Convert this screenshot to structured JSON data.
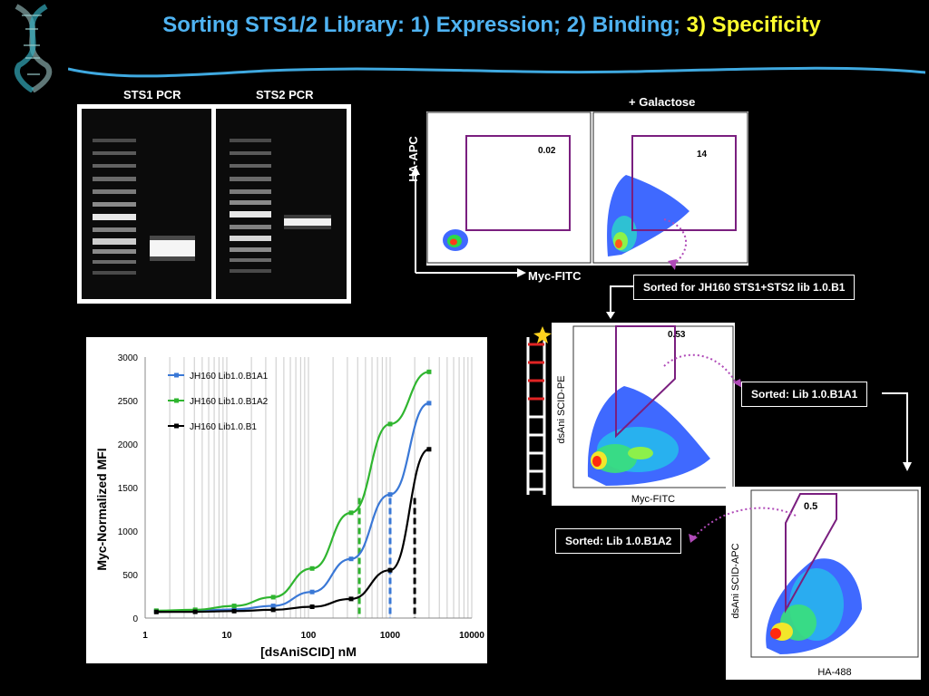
{
  "slide": {
    "title_main": "Sorting STS1/2 Library: 1) Expression; 2) Binding; ",
    "title_highlight": "3) Specificity",
    "gel": {
      "label_sts1": "STS1 PCR",
      "label_sts2": "STS2 PCR"
    },
    "facs_top": {
      "header": "+ Galactose",
      "y_axis": "HA-APC",
      "x_axis": "Myc-FITC",
      "gate_left": "0.02",
      "gate_right": "14",
      "sorted_label": "Sorted for JH160 STS1+STS2  lib 1.0.B1"
    },
    "facs_mid": {
      "y_axis": "dsAni SCID-PE",
      "x_axis": "Myc-FITC",
      "gate": "0.53",
      "sorted_label": "Sorted: Lib 1.0.B1A1"
    },
    "facs_bottom": {
      "y_axis": "dsAni SCID-APC",
      "x_axis": "HA-488",
      "gate": "0.5",
      "sorted_label": "Sorted: Lib 1.0.B1A2"
    }
  },
  "chart_data": {
    "type": "line",
    "xscale": "log",
    "xlabel": "[dsAniSCID] nM",
    "ylabel": "Myc-Normalized MFI",
    "xlim": [
      1,
      10000
    ],
    "ylim": [
      0,
      3000
    ],
    "x_ticks": [
      "1",
      "10",
      "100",
      "1000",
      "10000"
    ],
    "y_ticks": [
      "0",
      "500",
      "1000",
      "1500",
      "2000",
      "2500",
      "3000"
    ],
    "legend_position": "top-left",
    "grid": "log-vertical",
    "series": [
      {
        "name": "JH160 Lib1.0.B1A1",
        "color": "#3a78d6",
        "x": [
          1.37,
          4.1,
          12.3,
          37,
          111,
          333,
          1000,
          3000
        ],
        "y": [
          80,
          85,
          100,
          140,
          300,
          680,
          1420,
          2470
        ]
      },
      {
        "name": "JH160 Lib1.0.B1A2",
        "color": "#2fb52f",
        "x": [
          1.37,
          4.1,
          12.3,
          37,
          111,
          333,
          1000,
          3000
        ],
        "y": [
          85,
          95,
          140,
          240,
          570,
          1210,
          2230,
          2830
        ]
      },
      {
        "name": "JH160 Lib1.0.B1",
        "color": "#000000",
        "x": [
          1.37,
          4.1,
          12.3,
          37,
          111,
          333,
          1000,
          3000
        ],
        "y": [
          70,
          72,
          80,
          95,
          130,
          220,
          550,
          1940
        ]
      }
    ],
    "kd_markers": [
      {
        "x": 420,
        "color": "#2fb52f"
      },
      {
        "x": 1000,
        "color": "#3a78d6"
      },
      {
        "x": 2000,
        "color": "#000000"
      }
    ]
  }
}
